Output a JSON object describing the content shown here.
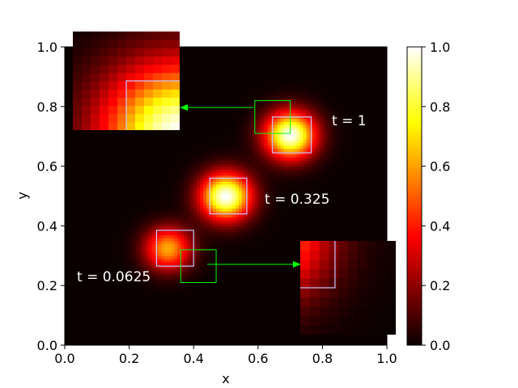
{
  "chart_data": {
    "type": "heatmap",
    "xlabel": "x",
    "ylabel": "y",
    "xlim": [
      0,
      1
    ],
    "ylim": [
      0,
      1
    ],
    "x_ticks": [
      "0.0",
      "0.2",
      "0.4",
      "0.6",
      "0.8",
      "1.0"
    ],
    "y_ticks": [
      "0.0",
      "0.2",
      "0.4",
      "0.6",
      "0.8",
      "1.0"
    ],
    "colormap": "hot",
    "colorbar": {
      "range": [
        0,
        1
      ],
      "ticks": [
        "0.0",
        "0.2",
        "0.4",
        "0.6",
        "0.8",
        "1.0"
      ]
    },
    "grid": false,
    "blobs": [
      {
        "label": "t = 0.0625",
        "center": [
          0.32,
          0.325
        ],
        "peak": 0.62,
        "sigma": 0.05
      },
      {
        "label": "t = 0.325",
        "center": [
          0.5,
          0.5
        ],
        "peak": 1.0,
        "sigma": 0.055
      },
      {
        "label": "t = 1",
        "center": [
          0.7,
          0.705
        ],
        "peak": 1.0,
        "sigma": 0.055
      }
    ],
    "highlight_boxes": [
      {
        "x": [
          0.285,
          0.4
        ],
        "y": [
          0.265,
          0.385
        ],
        "color": "#c8c8ff"
      },
      {
        "x": [
          0.45,
          0.565
        ],
        "y": [
          0.44,
          0.56
        ],
        "color": "#c8c8ff"
      },
      {
        "x": [
          0.645,
          0.765
        ],
        "y": [
          0.645,
          0.765
        ],
        "color": "#c8c8ff"
      }
    ],
    "zoom_regions": [
      {
        "x": [
          0.36,
          0.47
        ],
        "y": [
          0.21,
          0.32
        ],
        "color": "#00ff00"
      },
      {
        "x": [
          0.59,
          0.7
        ],
        "y": [
          0.71,
          0.82
        ],
        "color": "#00ff00"
      }
    ],
    "inset_note": "two magnified insets with arrows pointing from the green zoom regions"
  }
}
